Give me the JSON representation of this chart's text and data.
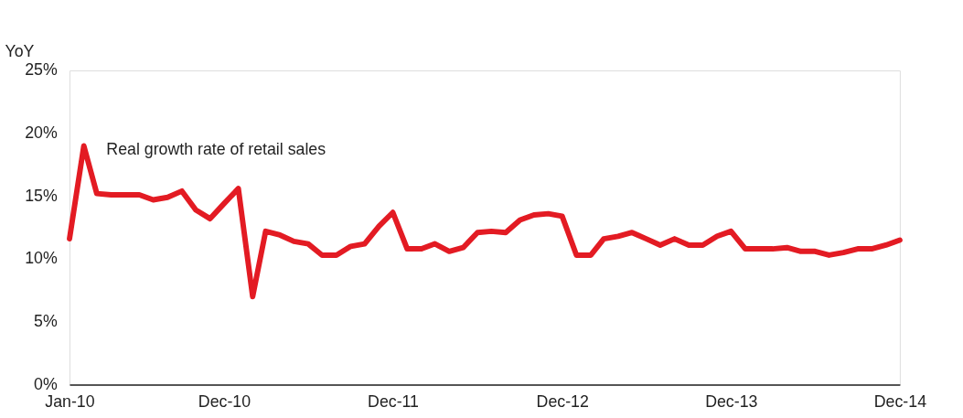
{
  "chart_data": {
    "type": "line",
    "ylabel": "YoY",
    "x": [
      "2010-01",
      "2010-02",
      "2010-03",
      "2010-04",
      "2010-05",
      "2010-06",
      "2010-07",
      "2010-08",
      "2010-09",
      "2010-10",
      "2010-11",
      "2010-12",
      "2011-01",
      "2011-02",
      "2011-03",
      "2011-04",
      "2011-05",
      "2011-06",
      "2011-07",
      "2011-08",
      "2011-09",
      "2011-10",
      "2011-11",
      "2011-12",
      "2012-01",
      "2012-02",
      "2012-03",
      "2012-04",
      "2012-05",
      "2012-06",
      "2012-07",
      "2012-08",
      "2012-09",
      "2012-10",
      "2012-11",
      "2012-12",
      "2013-01",
      "2013-02",
      "2013-03",
      "2013-04",
      "2013-05",
      "2013-06",
      "2013-07",
      "2013-08",
      "2013-09",
      "2013-10",
      "2013-11",
      "2013-12",
      "2014-01",
      "2014-02",
      "2014-03",
      "2014-04",
      "2014-05",
      "2014-06",
      "2014-07",
      "2014-08",
      "2014-09",
      "2014-10",
      "2014-11",
      "2014-12"
    ],
    "series": [
      {
        "name": "Real growth rate of retail sales",
        "color": "#e31b23",
        "values": [
          11.6,
          19.0,
          15.2,
          15.1,
          15.1,
          15.1,
          14.7,
          14.9,
          15.4,
          13.9,
          13.2,
          14.4,
          15.6,
          7.0,
          12.2,
          11.9,
          11.4,
          11.2,
          10.3,
          10.3,
          11.0,
          11.2,
          12.6,
          13.7,
          10.8,
          10.8,
          11.2,
          10.6,
          10.9,
          12.1,
          12.2,
          12.1,
          13.1,
          13.5,
          13.6,
          13.4,
          10.3,
          10.3,
          11.6,
          11.8,
          12.1,
          11.6,
          11.1,
          11.6,
          11.1,
          11.1,
          11.8,
          12.2,
          10.8,
          10.8,
          10.8,
          10.9,
          10.6,
          10.6,
          10.3,
          10.5,
          10.8,
          10.8,
          11.1,
          11.5
        ]
      }
    ],
    "xlim": [
      "2010-01",
      "2014-12"
    ],
    "xticks": [
      {
        "value": "2010-01",
        "label": "Jan-10"
      },
      {
        "value": "2010-12",
        "label": "Dec-10"
      },
      {
        "value": "2011-12",
        "label": "Dec-11"
      },
      {
        "value": "2012-12",
        "label": "Dec-12"
      },
      {
        "value": "2013-12",
        "label": "Dec-13"
      },
      {
        "value": "2014-12",
        "label": "Dec-14"
      }
    ],
    "ylim": [
      0,
      25
    ],
    "yticks": [
      {
        "value": 0,
        "label": "0%"
      },
      {
        "value": 5,
        "label": "5%"
      },
      {
        "value": 10,
        "label": "10%"
      },
      {
        "value": 15,
        "label": "15%"
      },
      {
        "value": 20,
        "label": "20%"
      },
      {
        "value": 25,
        "label": "25%"
      }
    ],
    "grid": false,
    "marker": "none",
    "line_style": "solid"
  }
}
